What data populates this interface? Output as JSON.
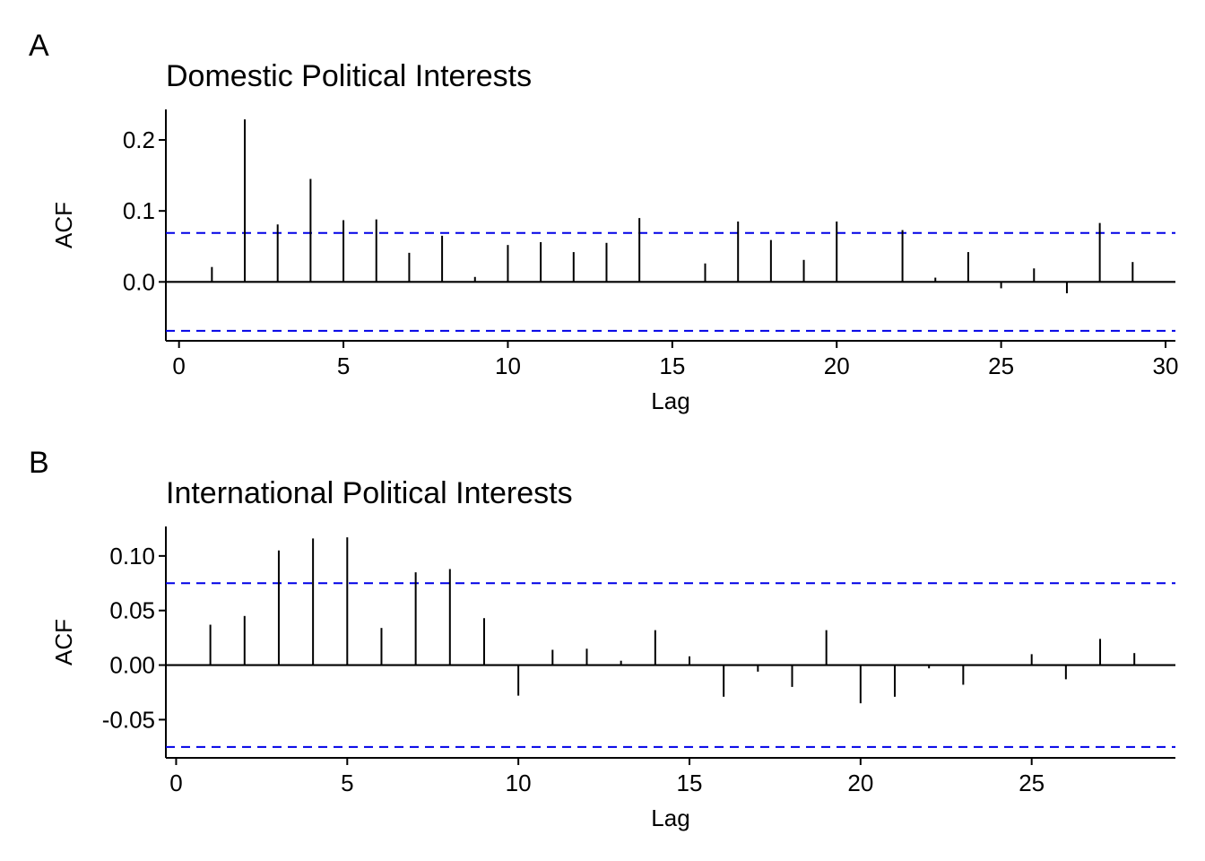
{
  "chart_data": [
    {
      "type": "bar",
      "panel_tag": "A",
      "title": "Domestic Political Interests",
      "xlabel": "Lag",
      "ylabel": "ACF",
      "xlim": [
        -0.4,
        30.3
      ],
      "ylim": [
        -0.083,
        0.243
      ],
      "xticks": [
        0,
        5,
        10,
        15,
        20,
        25,
        30
      ],
      "yticks": [
        0.0,
        0.1,
        0.2
      ],
      "ytick_labels": [
        "0.0",
        "0.1",
        "0.2"
      ],
      "ci": 0.069,
      "lags": [
        1,
        2,
        3,
        4,
        5,
        6,
        7,
        8,
        9,
        10,
        11,
        12,
        13,
        14,
        15,
        16,
        17,
        18,
        19,
        20,
        21,
        22,
        23,
        24,
        25,
        26,
        27,
        28,
        29
      ],
      "values": [
        0.021,
        0.229,
        0.081,
        0.145,
        0.087,
        0.088,
        0.041,
        0.065,
        0.007,
        0.052,
        0.056,
        0.042,
        0.055,
        0.09,
        0.001,
        0.026,
        0.085,
        0.059,
        0.031,
        0.085,
        0.001,
        0.073,
        0.006,
        0.042,
        -0.009,
        0.019,
        -0.016,
        0.083,
        0.028
      ],
      "line_color": "#000000",
      "ci_color": "#0000e6"
    },
    {
      "type": "bar",
      "panel_tag": "B",
      "title": "International Political Interests",
      "xlabel": "Lag",
      "ylabel": "ACF",
      "xlim": [
        -0.3,
        29.2
      ],
      "ylim": [
        -0.085,
        0.127
      ],
      "xticks": [
        0,
        5,
        10,
        15,
        20,
        25
      ],
      "yticks": [
        -0.05,
        0.0,
        0.05,
        0.1
      ],
      "ytick_labels": [
        "-0.05",
        "0.00",
        "0.05",
        "0.10"
      ],
      "ci": 0.075,
      "lags": [
        1,
        2,
        3,
        4,
        5,
        6,
        7,
        8,
        9,
        10,
        11,
        12,
        13,
        14,
        15,
        16,
        17,
        18,
        19,
        20,
        21,
        22,
        23,
        24,
        25,
        26,
        27,
        28
      ],
      "values": [
        0.037,
        0.045,
        0.105,
        0.116,
        0.117,
        0.034,
        0.085,
        0.088,
        0.043,
        -0.028,
        0.014,
        0.015,
        0.004,
        0.032,
        0.008,
        -0.029,
        -0.006,
        -0.02,
        0.032,
        -0.035,
        -0.029,
        -0.003,
        -0.018,
        0.0,
        0.01,
        -0.013,
        0.024,
        0.011
      ],
      "line_color": "#000000",
      "ci_color": "#0000e6"
    }
  ]
}
